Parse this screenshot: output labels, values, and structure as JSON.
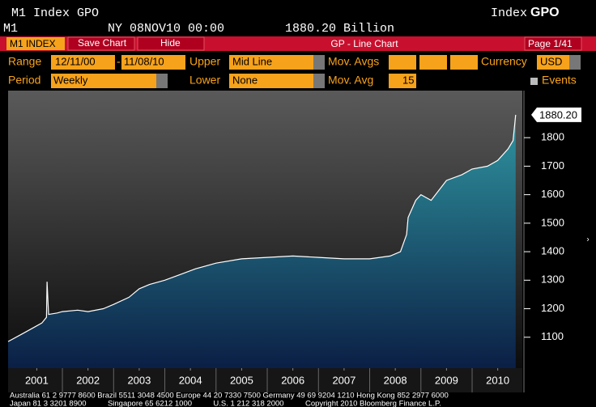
{
  "header": {
    "title": "M1 Index GPO",
    "right_index": "Index",
    "right_code": "GPO",
    "ticker": "M1",
    "timestamp": "NY 08NOV10 00:00",
    "last_value": "1880.20 Billion"
  },
  "toolbar": {
    "security": "M1 INDEX",
    "save": "Save Chart",
    "hide": "Hide",
    "function": "GP - Line Chart",
    "page": "Page 1/41"
  },
  "form": {
    "range_label": "Range",
    "range_from": "12/11/00",
    "range_dash": "-",
    "range_to": "11/08/10",
    "upper_label": "Upper",
    "upper_value": "Mid Line",
    "mov_avgs_label": "Mov. Avgs",
    "currency_label": "Currency",
    "currency_value": "USD",
    "period_label": "Period",
    "period_value": "Weekly",
    "lower_label": "Lower",
    "lower_value": "None",
    "mov_avg_label": "Mov. Avg",
    "mov_avg_value": "15",
    "events_label": "Events"
  },
  "chart_data": {
    "type": "line",
    "x": [
      2000.94,
      2001.2,
      2001.4,
      2001.6,
      2001.69,
      2001.7,
      2001.73,
      2001.9,
      2002.0,
      2002.3,
      2002.5,
      2002.8,
      2003.0,
      2003.3,
      2003.5,
      2003.7,
      2004.0,
      2004.3,
      2004.6,
      2005.0,
      2005.5,
      2006.0,
      2006.5,
      2007.0,
      2007.5,
      2008.0,
      2008.4,
      2008.6,
      2008.72,
      2008.75,
      2008.9,
      2009.0,
      2009.2,
      2009.5,
      2009.8,
      2010.0,
      2010.3,
      2010.5,
      2010.7,
      2010.8,
      2010.85
    ],
    "series": [
      {
        "name": "M1",
        "color": "#ffffff",
        "values": [
          1085,
          1110,
          1130,
          1150,
          1170,
          1295,
          1180,
          1185,
          1190,
          1195,
          1190,
          1200,
          1215,
          1240,
          1270,
          1285,
          1300,
          1320,
          1340,
          1360,
          1375,
          1380,
          1385,
          1380,
          1375,
          1375,
          1385,
          1400,
          1460,
          1520,
          1580,
          1600,
          1580,
          1650,
          1670,
          1690,
          1700,
          1720,
          1760,
          1790,
          1880.2
        ],
        "value_labels": [
          null,
          null,
          null,
          null,
          null,
          null,
          null,
          null,
          null,
          null,
          null,
          null,
          null,
          null,
          null,
          null,
          null,
          null,
          null,
          null,
          null,
          null,
          null,
          null,
          null,
          null,
          null,
          null,
          null,
          null,
          null,
          null,
          null,
          null,
          null,
          null,
          null,
          null,
          null,
          null,
          "1880.20"
        ]
      }
    ],
    "xlim": [
      2000.94,
      2010.98
    ],
    "xticks": [
      {
        "value": 2001.5,
        "label": "2001"
      },
      {
        "value": 2002.5,
        "label": "2002"
      },
      {
        "value": 2003.5,
        "label": "2003"
      },
      {
        "value": 2004.5,
        "label": "2004"
      },
      {
        "value": 2005.5,
        "label": "2005"
      },
      {
        "value": 2006.5,
        "label": "2006"
      },
      {
        "value": 2007.5,
        "label": "2007"
      },
      {
        "value": 2008.5,
        "label": "2008"
      },
      {
        "value": 2009.5,
        "label": "2009"
      },
      {
        "value": 2010.5,
        "label": "2010"
      }
    ],
    "ylim": [
      1000,
      1965
    ],
    "yticks": [
      1100,
      1200,
      1300,
      1400,
      1500,
      1600,
      1700,
      1800
    ]
  },
  "footer": {
    "lines": [
      "Australia 61 2 9777 8600 Brazil 5511 3048 4500 Europe 44 20 7330 7500 Germany 49 69 9204 1210 Hong Kong 852 2977 6000",
      "Japan 81 3 3201 8900          Singapore 65 6212 1000          U.S. 1 212 318 2000          Copyright 2010 Bloomberg Finance L.P."
    ]
  }
}
